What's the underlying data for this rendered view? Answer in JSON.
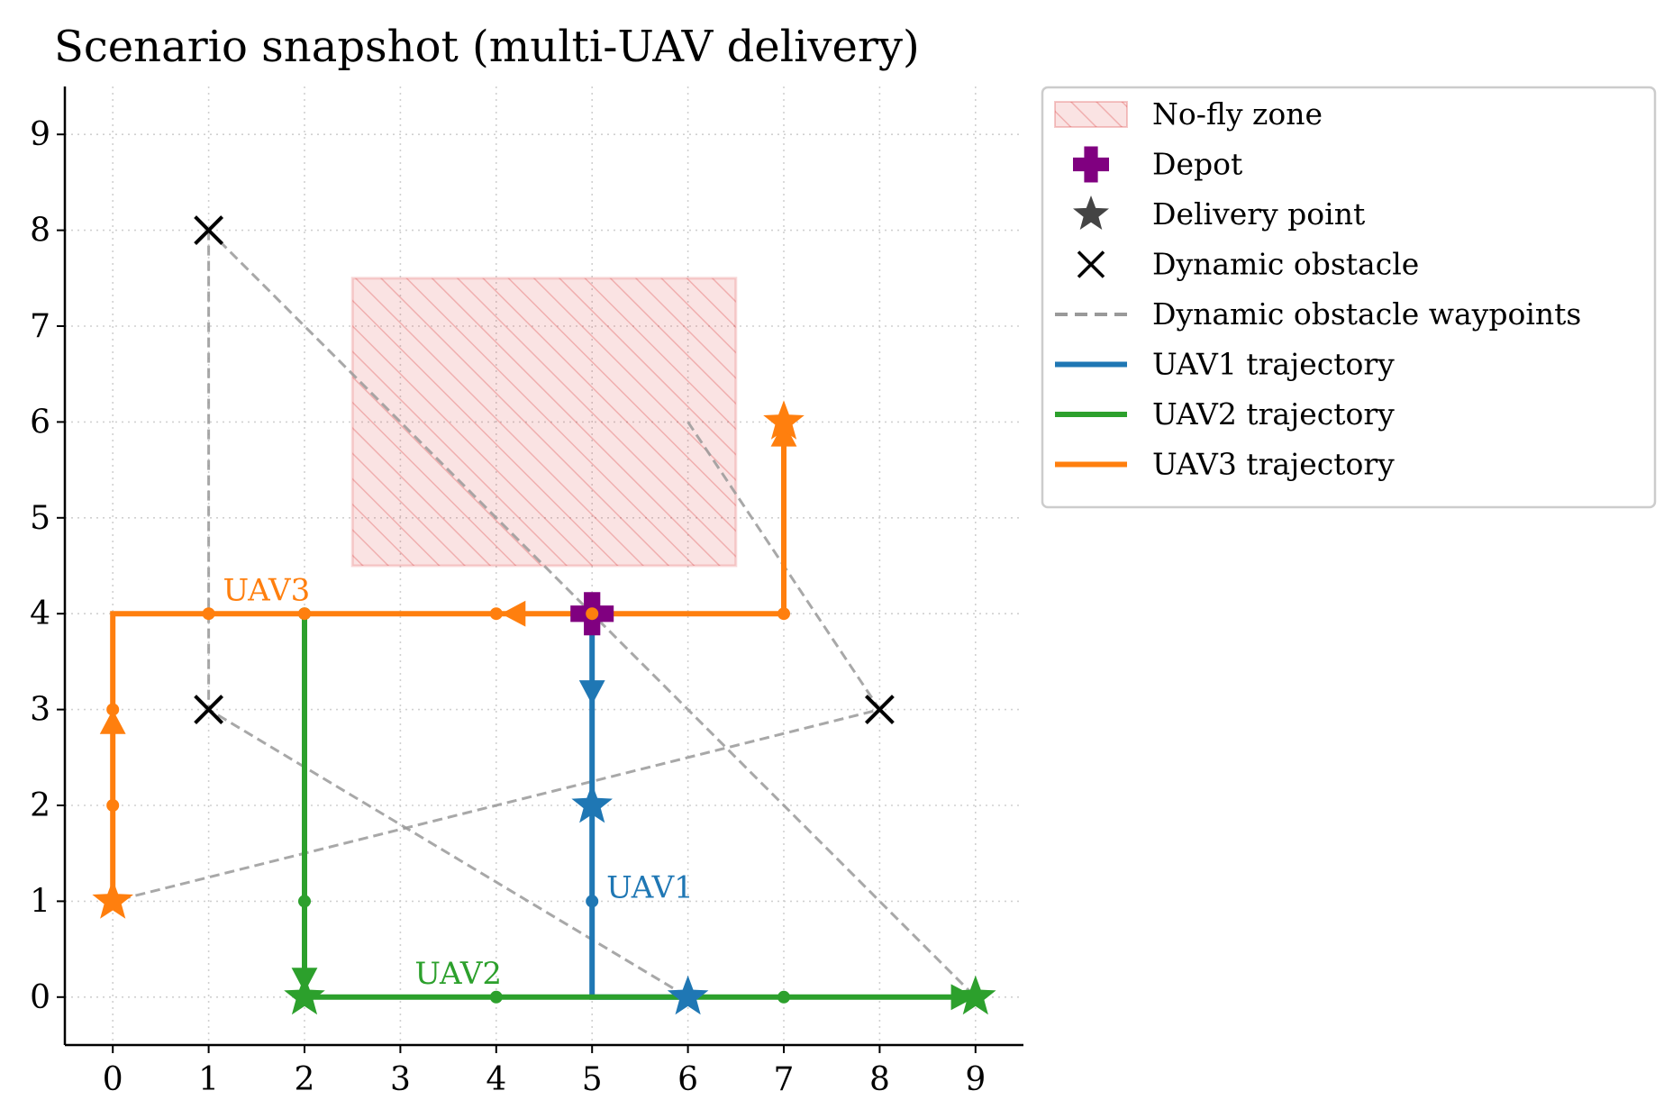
{
  "chart_data": {
    "type": "scatter",
    "title": "Scenario snapshot (multi-UAV delivery)",
    "xlabel": "",
    "ylabel": "",
    "xlim": [
      -0.5,
      9.5
    ],
    "ylim": [
      -0.5,
      9.5
    ],
    "xticks": [
      "0",
      "1",
      "2",
      "3",
      "4",
      "5",
      "6",
      "7",
      "8",
      "9"
    ],
    "yticks": [
      "0",
      "1",
      "2",
      "3",
      "4",
      "5",
      "6",
      "7",
      "8",
      "9"
    ],
    "grid": true,
    "legend_placement": "outside-right-top",
    "legend": [
      {
        "label": "No-fly zone",
        "kind": "hatch",
        "color": "#d62728"
      },
      {
        "label": "Depot",
        "kind": "plus",
        "color": "#800080"
      },
      {
        "label": "Delivery point",
        "kind": "star",
        "color": "#444444"
      },
      {
        "label": "Dynamic obstacle",
        "kind": "x",
        "color": "#000000"
      },
      {
        "label": "Dynamic obstacle waypoints",
        "kind": "dash",
        "color": "#999999"
      },
      {
        "label": "UAV1 trajectory",
        "kind": "line",
        "color": "#1f77b4"
      },
      {
        "label": "UAV2 trajectory",
        "kind": "line",
        "color": "#2ca02c"
      },
      {
        "label": "UAV3 trajectory",
        "kind": "line",
        "color": "#ff7f0e"
      }
    ],
    "no_fly_zone": {
      "x0": 2.5,
      "x1": 6.5,
      "y0": 4.5,
      "y1": 7.5,
      "color": "#d62728"
    },
    "depot": {
      "x": 5,
      "y": 4,
      "color": "#800080"
    },
    "obstacle_waypoint_paths": [
      [
        [
          1,
          8
        ],
        [
          1,
          3
        ],
        [
          6,
          0
        ]
      ],
      [
        [
          1,
          8
        ],
        [
          9,
          0
        ]
      ],
      [
        [
          6,
          6
        ],
        [
          8,
          3
        ],
        [
          0,
          1
        ]
      ]
    ],
    "dynamic_obstacles": [
      [
        1,
        8
      ],
      [
        1,
        3
      ],
      [
        8,
        3
      ]
    ],
    "uavs": [
      {
        "name": "UAV1",
        "color": "#1f77b4",
        "label_pos": [
          5.15,
          1.15
        ],
        "trajectory": [
          [
            5,
            4
          ],
          [
            5,
            0
          ],
          [
            6,
            0
          ]
        ],
        "waypoints": [
          [
            5,
            4
          ],
          [
            5,
            1
          ]
        ],
        "arrows": [
          {
            "x": 5,
            "y": 3.2,
            "dir": "down"
          }
        ],
        "deliveries": [
          [
            5,
            2
          ],
          [
            6,
            0
          ]
        ]
      },
      {
        "name": "UAV2",
        "color": "#2ca02c",
        "label_pos": [
          3.15,
          0.25
        ],
        "trajectory": [
          [
            2,
            4
          ],
          [
            2,
            0
          ],
          [
            9,
            0
          ]
        ],
        "waypoints": [
          [
            2,
            4
          ],
          [
            2,
            1
          ],
          [
            4,
            0
          ],
          [
            7,
            0
          ]
        ],
        "arrows": [
          {
            "x": 2,
            "y": 0.2,
            "dir": "down"
          },
          {
            "x": 8.85,
            "y": 0,
            "dir": "right"
          }
        ],
        "deliveries": [
          [
            2,
            0
          ],
          [
            9,
            0
          ]
        ]
      },
      {
        "name": "UAV3",
        "color": "#ff7f0e",
        "label_pos": [
          1.15,
          4.25
        ],
        "trajectory": [
          [
            0,
            1
          ],
          [
            0,
            4
          ],
          [
            7,
            4
          ],
          [
            7,
            6
          ]
        ],
        "waypoints": [
          [
            0,
            2
          ],
          [
            0,
            3
          ],
          [
            1,
            4
          ],
          [
            2,
            4
          ],
          [
            4,
            4
          ],
          [
            5,
            4
          ],
          [
            7,
            4
          ]
        ],
        "arrows": [
          {
            "x": 0,
            "y": 2.85,
            "dir": "up"
          },
          {
            "x": 4.2,
            "y": 4,
            "dir": "left"
          },
          {
            "x": 7,
            "y": 5.85,
            "dir": "up"
          }
        ],
        "deliveries": [
          [
            0,
            1
          ],
          [
            7,
            6
          ]
        ]
      }
    ]
  }
}
